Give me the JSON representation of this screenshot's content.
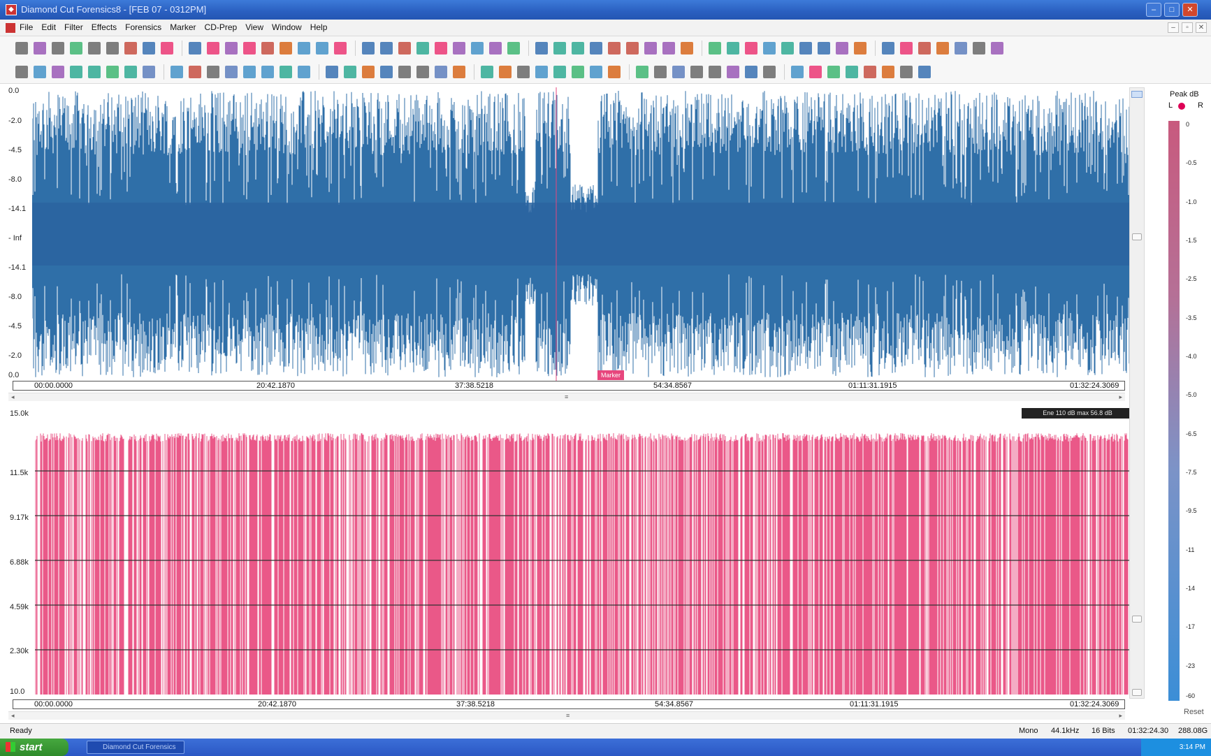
{
  "window": {
    "title": "Diamond Cut Forensics8 - [FEB 07 - 0312PM]",
    "minimize_icon": "minimize-icon",
    "maximize_icon": "maximize-icon",
    "close_icon": "close-icon"
  },
  "menu": {
    "items": [
      "File",
      "Edit",
      "Filter",
      "Effects",
      "Forensics",
      "Marker",
      "CD-Prep",
      "View",
      "Window",
      "Help"
    ]
  },
  "waveform": {
    "color": "#2f6fa8",
    "y_labels": [
      "0.0",
      "-2.0",
      "-4.5",
      "-8.0",
      "-14.1",
      "- Inf",
      "-14.1",
      "-8.0",
      "-4.5",
      "-2.0",
      "0.0"
    ],
    "marker_label": "Marker"
  },
  "spectrum": {
    "color": "#e8467c",
    "y_labels": [
      "15.0k",
      "11.5k",
      "9.17k",
      "6.88k",
      "4.59k",
      "2.30k",
      "10.0"
    ],
    "badge": "Ene 110 dB max 56.8 dB"
  },
  "timeline": {
    "ticks": [
      "00:00.0000",
      "20:42.1870",
      "37:38.5218",
      "54:34.8567",
      "01:11:31.1915",
      "01:32:24.3069"
    ]
  },
  "meter": {
    "title": "Peak dB",
    "left": "L",
    "right": "R",
    "scale": [
      "0",
      "-0.5",
      "-1.0",
      "-1.5",
      "-2.5",
      "-3.5",
      "-4.0",
      "-5.0",
      "-6.5",
      "-7.5",
      "-9.5",
      "-11",
      "-14",
      "-17",
      "-23",
      "-60"
    ],
    "reset": "Reset"
  },
  "status": {
    "ready": "Ready",
    "mode": "Mono",
    "rate": "44.1kHz",
    "bits": "16 Bits",
    "duration": "01:32:24.30",
    "size": "288.08G"
  },
  "taskbar": {
    "start": "start",
    "task": "Diamond Cut Forensics",
    "clock": "3:14 PM"
  }
}
